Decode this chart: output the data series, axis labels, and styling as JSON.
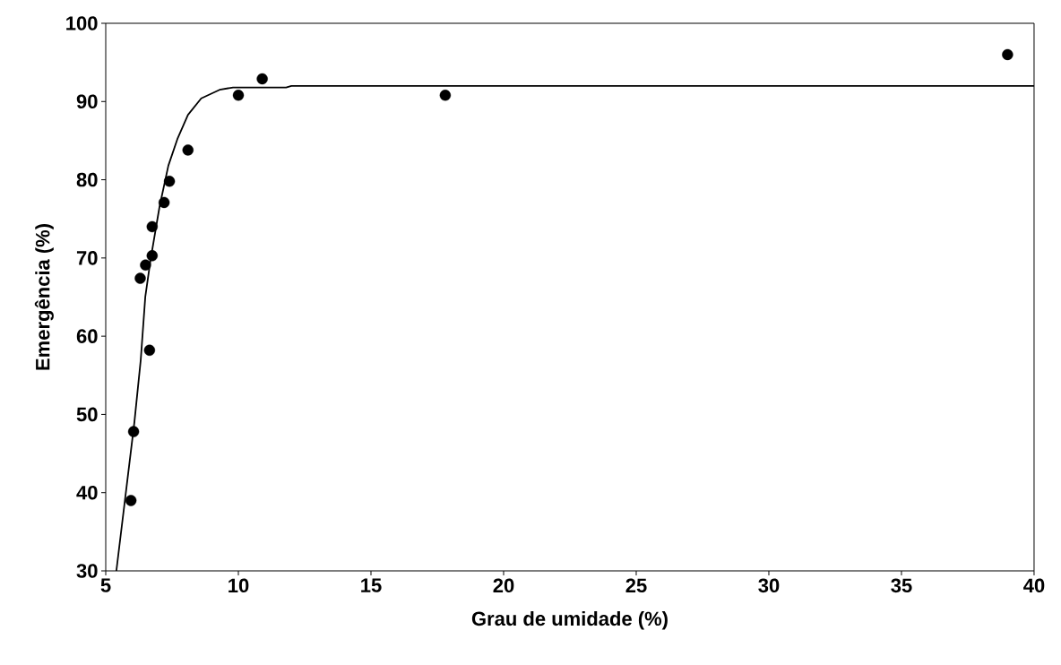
{
  "chart_data": {
    "type": "scatter",
    "xlabel": "Grau de umidade (%)",
    "ylabel": "Emergência (%)",
    "xlim": [
      5,
      40
    ],
    "ylim": [
      30,
      100
    ],
    "xticks": [
      5,
      10,
      15,
      20,
      25,
      30,
      35,
      40
    ],
    "yticks": [
      30,
      40,
      50,
      60,
      70,
      80,
      90,
      100
    ],
    "grid": false,
    "series": [
      {
        "color": "#000000",
        "marker": "circle",
        "x": [
          5.95,
          6.05,
          6.3,
          6.5,
          6.65,
          6.75,
          6.75,
          7.2,
          7.4,
          8.1,
          10.0,
          10.9,
          17.8,
          39.0
        ],
        "values": [
          39,
          47.8,
          67.4,
          69.1,
          58.2,
          70.3,
          74.0,
          77.1,
          79.8,
          83.8,
          90.8,
          92.9,
          90.8,
          96.0
        ]
      },
      {
        "type": "line",
        "color": "#000000",
        "marker": "none",
        "line_style": "solid",
        "x": [
          5.4,
          6.08,
          6.32,
          6.49,
          6.69,
          7.03,
          7.36,
          7.7,
          8.1,
          8.6,
          9.29,
          9.8,
          11.8,
          12.0,
          40
        ],
        "values": [
          30,
          49,
          57,
          65,
          69.8,
          76.6,
          81.8,
          85.2,
          88.3,
          90.4,
          91.5,
          91.8,
          91.8,
          92.0,
          92.0
        ]
      }
    ]
  }
}
